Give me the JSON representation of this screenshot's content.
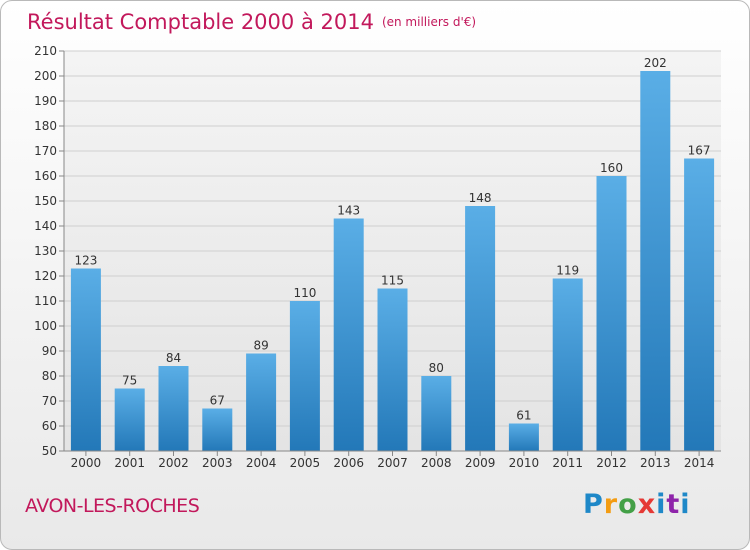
{
  "chart_data": {
    "type": "bar",
    "title": "Résultat Comptable 2000 à 2014",
    "subtitle": "(en milliers d'€)",
    "categories": [
      "2000",
      "2001",
      "2002",
      "2003",
      "2004",
      "2005",
      "2006",
      "2007",
      "2008",
      "2009",
      "2010",
      "2011",
      "2012",
      "2013",
      "2014"
    ],
    "values": [
      123,
      75,
      84,
      67,
      89,
      110,
      143,
      115,
      80,
      148,
      61,
      119,
      160,
      202,
      167
    ],
    "ylim": [
      50,
      210
    ],
    "yticks": [
      50,
      60,
      70,
      80,
      90,
      100,
      110,
      120,
      130,
      140,
      150,
      160,
      170,
      180,
      190,
      200,
      210
    ],
    "xlabel": "",
    "ylabel": "",
    "grid": true,
    "bar_color": "#3d98d8",
    "title_color": "#c2185b"
  },
  "footer": {
    "commune": "AVON-LES-ROCHES",
    "brand": "Proxiti"
  }
}
